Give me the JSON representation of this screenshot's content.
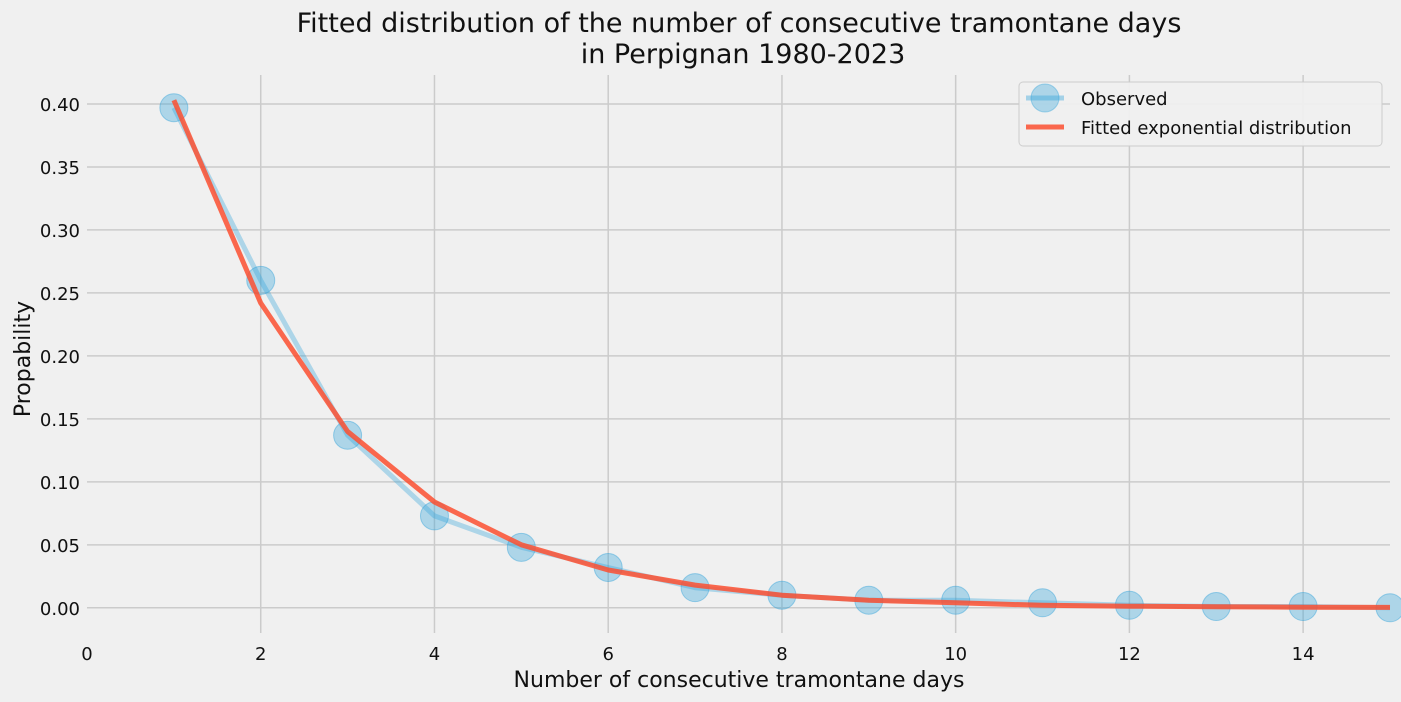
{
  "chart_data": {
    "type": "line",
    "title_line1": "Fitted distribution of the number of consecutive tramontane days",
    "title_line2": "in Perpignan 1980-2023",
    "xlabel": "Number of consecutive tramontane days",
    "ylabel": "Propability",
    "xlim": [
      0,
      15
    ],
    "ylim": [
      -0.02,
      0.423
    ],
    "xticks": [
      0,
      2,
      4,
      6,
      8,
      10,
      12,
      14
    ],
    "xtick_labels": [
      "0",
      "2",
      "4",
      "6",
      "8",
      "10",
      "12",
      "14"
    ],
    "yticks": [
      0.0,
      0.05,
      0.1,
      0.15,
      0.2,
      0.25,
      0.3,
      0.35,
      0.4
    ],
    "ytick_labels": [
      "0.00",
      "0.05",
      "0.10",
      "0.15",
      "0.20",
      "0.25",
      "0.30",
      "0.35",
      "0.40"
    ],
    "grid": true,
    "legend_position": "top-right",
    "series": [
      {
        "name": "Observed",
        "color": "#30a2da",
        "style": "line-with-markers",
        "x": [
          1,
          2,
          3,
          4,
          5,
          6,
          7,
          8,
          9,
          10,
          11,
          12,
          13,
          14,
          15
        ],
        "y": [
          0.397,
          0.26,
          0.137,
          0.073,
          0.048,
          0.032,
          0.016,
          0.01,
          0.006,
          0.006,
          0.004,
          0.002,
          0.001,
          0.001,
          0.0
        ]
      },
      {
        "name": "Fitted exponential distribution",
        "color": "#fc4f30",
        "style": "line",
        "x": [
          1,
          2,
          3,
          4,
          5,
          6,
          7,
          8,
          9,
          10,
          11,
          12,
          13,
          14,
          15
        ],
        "y": [
          0.403,
          0.242,
          0.14,
          0.084,
          0.05,
          0.03,
          0.018,
          0.01,
          0.006,
          0.004,
          0.002,
          0.0013,
          0.0008,
          0.0005,
          0.0003
        ]
      }
    ]
  }
}
